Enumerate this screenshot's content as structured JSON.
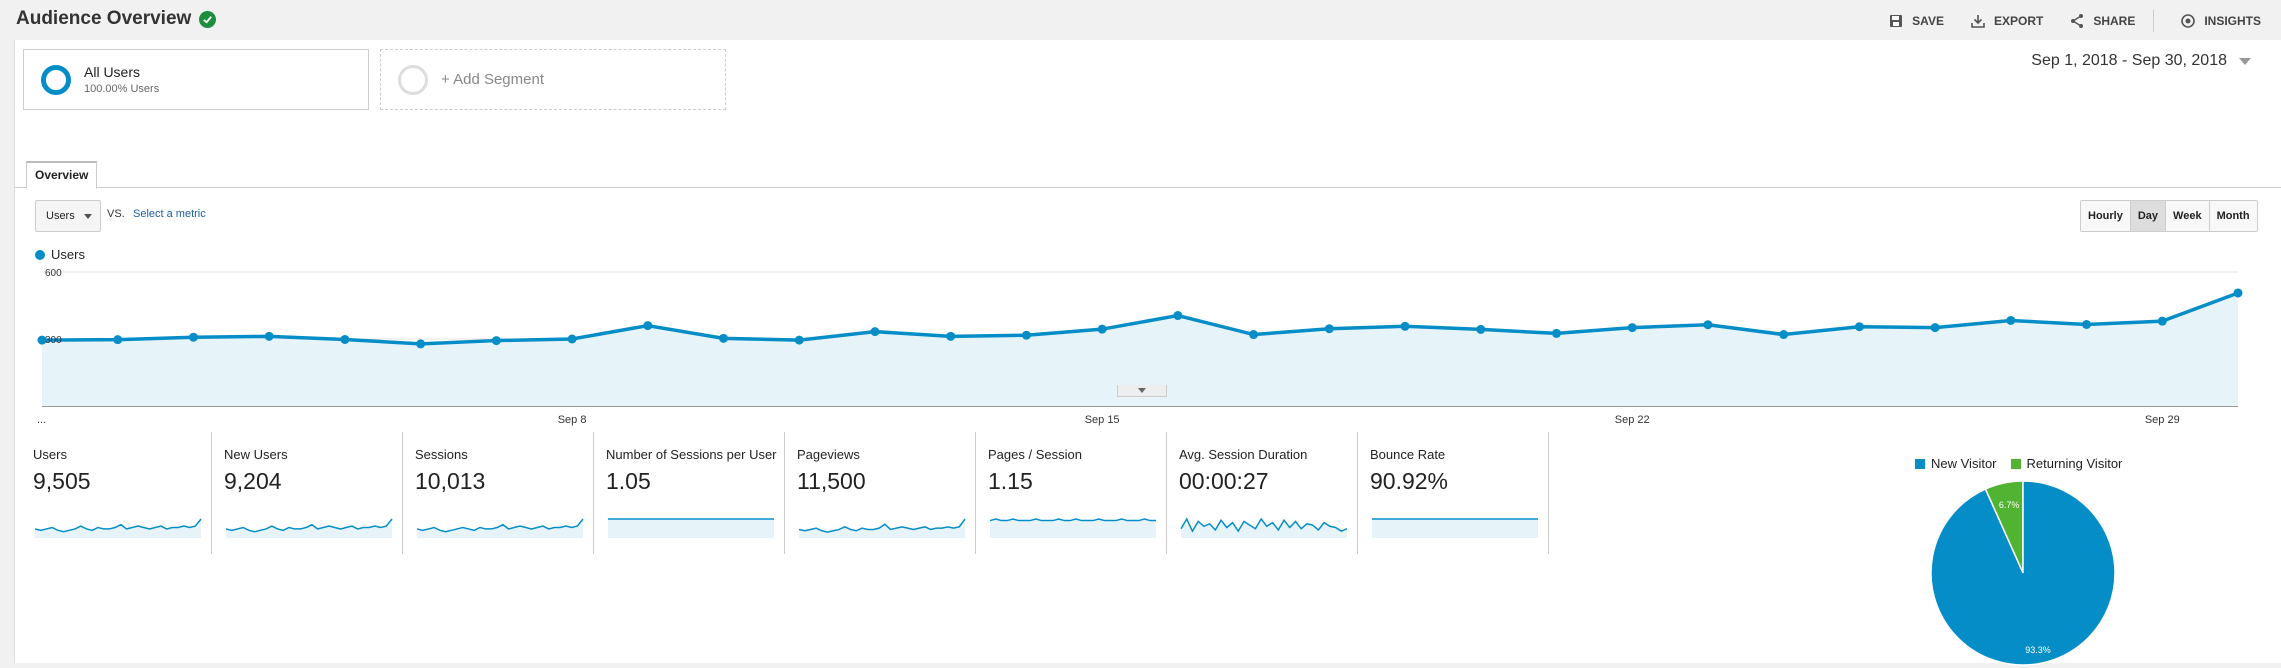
{
  "header": {
    "title": "Audience Overview",
    "actions": [
      {
        "label": "SAVE",
        "icon": "save-icon"
      },
      {
        "label": "EXPORT",
        "icon": "export-icon"
      },
      {
        "label": "SHARE",
        "icon": "share-icon"
      },
      {
        "label": "INSIGHTS",
        "icon": "insights-icon"
      }
    ]
  },
  "segments": {
    "all_users": {
      "name": "All Users",
      "sub": "100.00% Users"
    },
    "add_segment": "+ Add Segment"
  },
  "date_range": "Sep 1, 2018 - Sep 30, 2018",
  "tabs": {
    "overview": "Overview"
  },
  "metric_selector": {
    "selected": "Users",
    "vs": "VS.",
    "select_metric": "Select a metric"
  },
  "granularity": {
    "options": [
      "Hourly",
      "Day",
      "Week",
      "Month"
    ],
    "selected": "Day"
  },
  "chart_data": {
    "type": "line",
    "series": [
      {
        "name": "Users",
        "color": "#058dc7",
        "values": [
          295,
          297,
          308,
          312,
          298,
          278,
          293,
          300,
          360,
          303,
          295,
          333,
          312,
          317,
          344,
          405,
          320,
          346,
          357,
          343,
          325,
          351,
          364,
          320,
          355,
          351,
          383,
          365,
          380,
          506
        ]
      }
    ],
    "x": [
      "Sep 1",
      "Sep 2",
      "Sep 3",
      "Sep 4",
      "Sep 5",
      "Sep 6",
      "Sep 7",
      "Sep 8",
      "Sep 9",
      "Sep 10",
      "Sep 11",
      "Sep 12",
      "Sep 13",
      "Sep 14",
      "Sep 15",
      "Sep 16",
      "Sep 17",
      "Sep 18",
      "Sep 19",
      "Sep 20",
      "Sep 21",
      "Sep 22",
      "Sep 23",
      "Sep 24",
      "Sep 25",
      "Sep 26",
      "Sep 27",
      "Sep 28",
      "Sep 29",
      "Sep 30"
    ],
    "x_tick_labels": [
      "...",
      "Sep 8",
      "Sep 15",
      "Sep 22",
      "Sep 29"
    ],
    "y_tick_labels": [
      "600",
      "300"
    ],
    "ylim": [
      0,
      600
    ],
    "grid": true,
    "legend": "top-left"
  },
  "metrics": [
    {
      "label": "Users",
      "value": "9,505",
      "spark": [
        5,
        4,
        5,
        6,
        4,
        3,
        4,
        5,
        7,
        5,
        4,
        6,
        5,
        5,
        6,
        8,
        5,
        6,
        7,
        6,
        5,
        6,
        7,
        5,
        6,
        6,
        7,
        6,
        7,
        12
      ]
    },
    {
      "label": "New Users",
      "value": "9,204",
      "spark": [
        5,
        4,
        5,
        6,
        4,
        3,
        4,
        5,
        7,
        5,
        4,
        6,
        5,
        5,
        6,
        8,
        5,
        6,
        7,
        6,
        5,
        6,
        7,
        5,
        6,
        6,
        7,
        6,
        7,
        12
      ]
    },
    {
      "label": "Sessions",
      "value": "10,013",
      "spark": [
        5,
        4,
        5,
        6,
        4,
        3,
        4,
        5,
        6,
        5,
        4,
        6,
        5,
        5,
        6,
        8,
        5,
        6,
        7,
        6,
        5,
        6,
        7,
        5,
        6,
        6,
        7,
        6,
        7,
        12
      ]
    },
    {
      "label": "Number of Sessions per User",
      "value": "1.05",
      "spark": [
        10,
        10,
        10,
        10,
        10,
        10,
        10,
        10,
        10,
        10,
        10,
        10,
        10,
        10,
        10,
        10,
        10,
        10,
        10,
        10,
        10,
        10,
        10,
        10,
        10,
        10,
        10,
        10,
        10,
        10
      ]
    },
    {
      "label": "Pageviews",
      "value": "11,500",
      "spark": [
        5,
        4,
        5,
        6,
        4,
        3,
        4,
        5,
        7,
        5,
        4,
        6,
        5,
        5,
        6,
        9,
        5,
        6,
        7,
        6,
        5,
        6,
        7,
        5,
        6,
        6,
        7,
        6,
        7,
        13
      ]
    },
    {
      "label": "Pages / Session",
      "value": "1.15",
      "spark": [
        10,
        11,
        10,
        10,
        11,
        10,
        10,
        10,
        11,
        10,
        10,
        10,
        11,
        10,
        10,
        11,
        10,
        10,
        10,
        11,
        10,
        10,
        10,
        11,
        10,
        10,
        10,
        11,
        10,
        10
      ]
    },
    {
      "label": "Avg. Session Duration",
      "value": "00:00:27",
      "spark": [
        6,
        14,
        4,
        12,
        8,
        10,
        5,
        13,
        7,
        11,
        4,
        12,
        9,
        6,
        14,
        8,
        11,
        5,
        13,
        7,
        12,
        6,
        10,
        9,
        5,
        11,
        8,
        7,
        4,
        6
      ]
    },
    {
      "label": "Bounce Rate",
      "value": "90.92%",
      "spark": [
        10,
        10,
        10,
        10,
        10,
        10,
        10,
        10,
        10,
        10,
        10,
        10,
        10,
        10,
        10,
        10,
        10,
        10,
        10,
        10,
        10,
        10,
        10,
        10,
        10,
        10,
        10,
        10,
        10,
        10
      ]
    }
  ],
  "pie": {
    "legend": [
      {
        "label": "New Visitor",
        "color": "#058dc7"
      },
      {
        "label": "Returning Visitor",
        "color": "#50b432"
      }
    ],
    "slices": [
      {
        "label": "New Visitor",
        "value": 93.3,
        "text": "93.3%",
        "color": "#058dc7"
      },
      {
        "label": "Returning Visitor",
        "value": 6.7,
        "text": "6.7%",
        "color": "#50b432"
      }
    ]
  }
}
